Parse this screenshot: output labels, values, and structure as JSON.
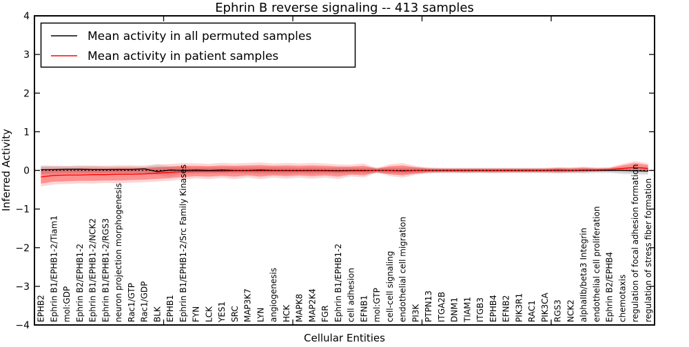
{
  "chart_data": {
    "type": "line",
    "title": "Ephrin B reverse signaling -- 413 samples",
    "xlabel": "Cellular Entities",
    "ylabel": "Inferred Activity",
    "ylim": [
      -4,
      4
    ],
    "y_ticks": [
      4,
      3,
      2,
      1,
      0,
      -1,
      -2,
      -3,
      -4
    ],
    "x_top_ticks": [
      10,
      20,
      30,
      40
    ],
    "grid": false,
    "legend_position": "upper left",
    "zero_reference_line": 0,
    "categories": [
      "EPHB2",
      "Ephrin B1/EPHB1-2/Tiam1",
      "mol:GDP",
      "Ephrin B2/EPHB1-2",
      "Ephrin B1/EPHB1-2/NCK2",
      "Ephrin B1/EPHB1-2/RGS3",
      "neuron projection morphogenesis",
      "Rac1/GTP",
      "Rac1/GDP",
      "BLK",
      "EPHB1",
      "Ephrin B1/EPHB1-2/Src Family Kinases",
      "FYN",
      "LCK",
      "YES1",
      "SRC",
      "MAP3K7",
      "LYN",
      "angiogenesis",
      "HCK",
      "MAPK8",
      "MAP2K4",
      "FGR",
      "Ephrin B1/EPHB1-2",
      "cell adhesion",
      "EFNB1",
      "mol:GTP",
      "cell-cell signaling",
      "endothelial cell migration",
      "PI3K",
      "PTPN13",
      "ITGA2B",
      "DNM1",
      "TIAM1",
      "ITGB3",
      "EPHB4",
      "EFNB2",
      "PIK3R1",
      "RAC1",
      "PIK3CA",
      "RGS3",
      "NCK2",
      "alphaIIb/beta3 Integrin",
      "endothelial cell proliferation",
      "Ephrin B2/EPHB4",
      "chemotaxis",
      "regulation of focal adhesion formation",
      "regulation of stress fiber formation"
    ],
    "series": [
      {
        "name": "Mean activity in all permuted samples",
        "color": "#000000",
        "values": [
          0.02,
          0.02,
          0.03,
          0.03,
          0.02,
          0.02,
          0.02,
          0.02,
          0.04,
          -0.03,
          0.01,
          0.0,
          0.01,
          0.0,
          0.01,
          0.0,
          0.0,
          0.01,
          0.0,
          0.0,
          0.0,
          0.0,
          0.0,
          -0.01,
          0.0,
          0.0,
          0.0,
          0.0,
          -0.01,
          0.0,
          0.0,
          0.0,
          0.0,
          0.0,
          0.0,
          0.0,
          0.0,
          0.0,
          0.0,
          0.0,
          0.0,
          0.0,
          0.0,
          0.0,
          0.0,
          0.0,
          -0.01,
          -0.02
        ],
        "band_low": [
          -0.08,
          -0.07,
          -0.06,
          -0.06,
          -0.06,
          -0.06,
          -0.06,
          -0.06,
          -0.06,
          -0.1,
          -0.11,
          -0.07,
          -0.06,
          -0.06,
          -0.06,
          -0.06,
          -0.06,
          -0.07,
          -0.07,
          -0.07,
          -0.06,
          -0.07,
          -0.06,
          -0.07,
          -0.06,
          -0.06,
          -0.06,
          -0.06,
          -0.07,
          -0.06,
          -0.05,
          -0.05,
          -0.05,
          -0.06,
          -0.05,
          -0.06,
          -0.05,
          -0.05,
          -0.05,
          -0.05,
          -0.06,
          -0.05,
          -0.06,
          -0.05,
          -0.05,
          -0.07,
          -0.08,
          -0.09
        ],
        "band_high": [
          0.1,
          0.09,
          0.09,
          0.09,
          0.09,
          0.08,
          0.08,
          0.08,
          0.08,
          0.11,
          0.08,
          0.08,
          0.07,
          0.07,
          0.07,
          0.07,
          0.07,
          0.07,
          0.07,
          0.07,
          0.06,
          0.07,
          0.06,
          0.06,
          0.06,
          0.06,
          0.06,
          0.06,
          0.06,
          0.06,
          0.05,
          0.05,
          0.05,
          0.05,
          0.05,
          0.05,
          0.05,
          0.05,
          0.05,
          0.05,
          0.05,
          0.05,
          0.05,
          0.05,
          0.05,
          0.06,
          0.06,
          0.06
        ]
      },
      {
        "name": "Mean activity in patient samples",
        "color": "#ff0000",
        "values": [
          -0.17,
          -0.13,
          -0.12,
          -0.12,
          -0.11,
          -0.11,
          -0.1,
          -0.1,
          -0.09,
          -0.07,
          -0.05,
          -0.03,
          -0.02,
          -0.02,
          -0.02,
          -0.01,
          -0.01,
          -0.01,
          -0.01,
          -0.01,
          -0.01,
          -0.01,
          -0.01,
          -0.02,
          -0.01,
          -0.01,
          0.0,
          0.0,
          0.0,
          0.0,
          0.0,
          0.0,
          0.0,
          0.0,
          0.0,
          0.0,
          0.0,
          0.0,
          0.0,
          0.0,
          0.01,
          0.0,
          0.01,
          0.01,
          0.02,
          0.05,
          0.08,
          0.05
        ],
        "band_low": [
          -0.34,
          -0.29,
          -0.28,
          -0.27,
          -0.27,
          -0.26,
          -0.26,
          -0.25,
          -0.24,
          -0.22,
          -0.2,
          -0.17,
          -0.15,
          -0.16,
          -0.14,
          -0.16,
          -0.13,
          -0.16,
          -0.13,
          -0.15,
          -0.13,
          -0.15,
          -0.13,
          -0.16,
          -0.11,
          -0.13,
          -0.04,
          -0.1,
          -0.13,
          -0.08,
          -0.05,
          -0.04,
          -0.04,
          -0.04,
          -0.04,
          -0.04,
          -0.04,
          -0.04,
          -0.04,
          -0.04,
          -0.04,
          -0.04,
          -0.03,
          -0.02,
          -0.01,
          0.0,
          0.02,
          0.0
        ],
        "band_high": [
          0.02,
          0.04,
          0.04,
          0.05,
          0.05,
          0.05,
          0.06,
          0.06,
          0.06,
          0.08,
          0.1,
          0.12,
          0.12,
          0.11,
          0.13,
          0.12,
          0.13,
          0.14,
          0.12,
          0.13,
          0.12,
          0.13,
          0.12,
          0.1,
          0.1,
          0.12,
          0.04,
          0.11,
          0.13,
          0.08,
          0.05,
          0.04,
          0.04,
          0.04,
          0.04,
          0.04,
          0.04,
          0.04,
          0.04,
          0.04,
          0.06,
          0.05,
          0.07,
          0.05,
          0.06,
          0.13,
          0.19,
          0.14
        ]
      }
    ]
  }
}
